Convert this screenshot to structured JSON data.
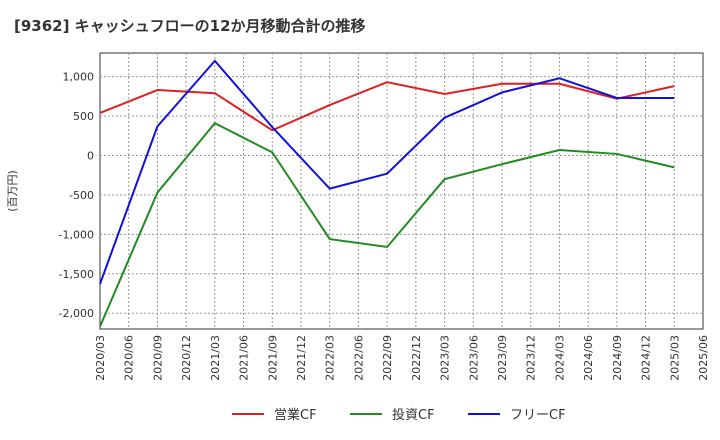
{
  "chart_data": {
    "type": "line",
    "title": "[9362]  キャッシュフローの12か月移動合計の推移",
    "ylabel": "(百万円)",
    "xlabel": "",
    "ylim": [
      -2200,
      1300
    ],
    "yticks": [
      1000,
      500,
      0,
      -500,
      -1000,
      -1500,
      -2000
    ],
    "ytick_labels": [
      "1,000",
      "500",
      "0",
      "-500",
      "-1,000",
      "-1,500",
      "-2,000"
    ],
    "grid": true,
    "legend_position": "bottom-center",
    "x_ticks": [
      "2020/03",
      "2020/06",
      "2020/09",
      "2020/12",
      "2021/03",
      "2021/06",
      "2021/09",
      "2021/12",
      "2022/03",
      "2022/06",
      "2022/09",
      "2022/12",
      "2023/03",
      "2023/06",
      "2023/09",
      "2023/12",
      "2024/03",
      "2024/06",
      "2024/09",
      "2024/12",
      "2025/03",
      "2025/06"
    ],
    "x": [
      "2020/03",
      "2020/09",
      "2021/03",
      "2021/09",
      "2022/03",
      "2022/09",
      "2023/03",
      "2023/09",
      "2024/03",
      "2024/09",
      "2025/03"
    ],
    "series": [
      {
        "name": "営業CF",
        "color": "#e02020",
        "values": [
          540,
          830,
          790,
          320,
          640,
          930,
          780,
          910,
          910,
          720,
          880
        ]
      },
      {
        "name": "投資CF",
        "color": "#228b22",
        "values": [
          -2170,
          -470,
          410,
          40,
          -1060,
          -1160,
          -300,
          -110,
          70,
          20,
          -150
        ]
      },
      {
        "name": "フリーCF",
        "color": "#1010e0",
        "values": [
          -1630,
          370,
          1200,
          360,
          -420,
          -230,
          480,
          800,
          980,
          730,
          730
        ]
      }
    ]
  }
}
